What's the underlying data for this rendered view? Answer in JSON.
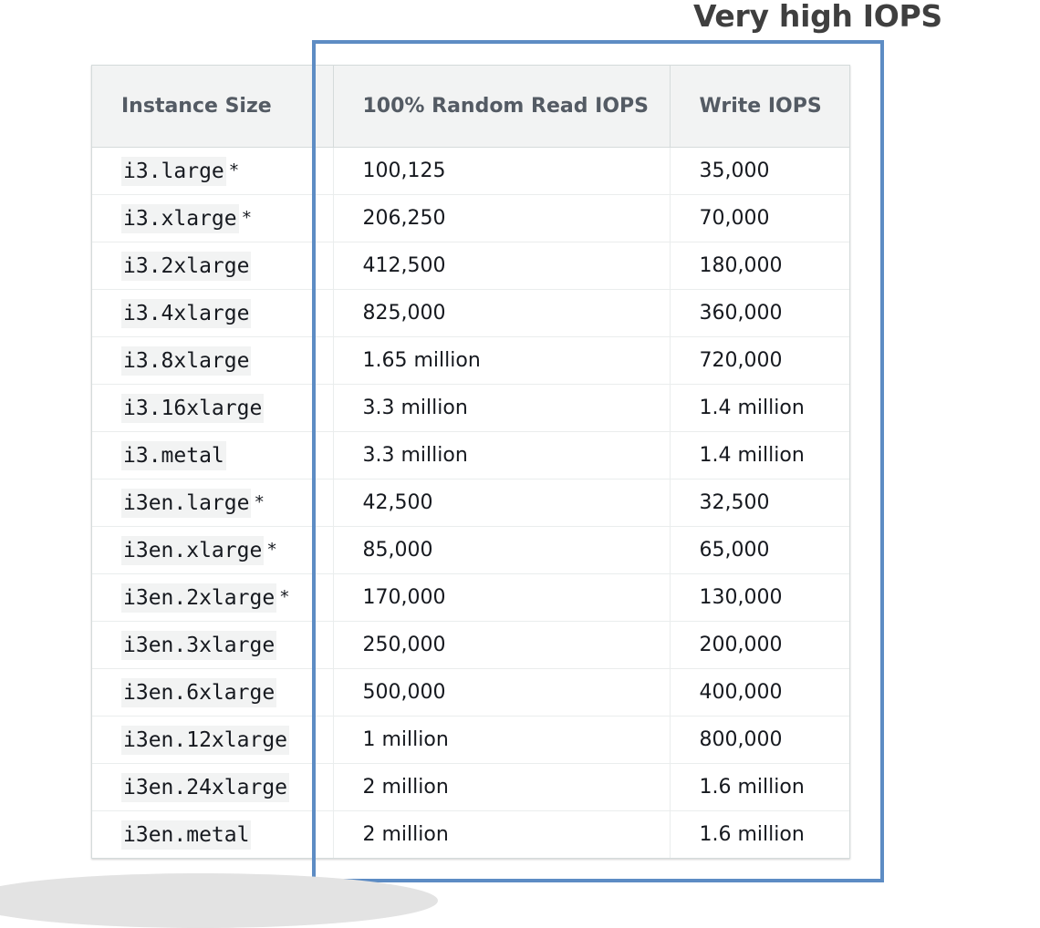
{
  "callout": {
    "text": "Very high IOPS",
    "box_color": "#5d8cc4"
  },
  "table": {
    "headers": [
      "Instance Size",
      "100% Random Read IOPS",
      "Write IOPS"
    ],
    "rows": [
      {
        "instance": "i3.large",
        "footnote": "*",
        "read": "100,125",
        "write": "35,000"
      },
      {
        "instance": "i3.xlarge",
        "footnote": "*",
        "read": "206,250",
        "write": "70,000"
      },
      {
        "instance": "i3.2xlarge",
        "footnote": "",
        "read": "412,500",
        "write": "180,000"
      },
      {
        "instance": "i3.4xlarge",
        "footnote": "",
        "read": "825,000",
        "write": "360,000"
      },
      {
        "instance": "i3.8xlarge",
        "footnote": "",
        "read": "1.65 million",
        "write": "720,000"
      },
      {
        "instance": "i3.16xlarge",
        "footnote": "",
        "read": "3.3 million",
        "write": "1.4 million"
      },
      {
        "instance": "i3.metal",
        "footnote": "",
        "read": "3.3 million",
        "write": "1.4 million"
      },
      {
        "instance": "i3en.large",
        "footnote": "*",
        "read": "42,500",
        "write": "32,500"
      },
      {
        "instance": "i3en.xlarge",
        "footnote": "*",
        "read": "85,000",
        "write": "65,000"
      },
      {
        "instance": "i3en.2xlarge",
        "footnote": "*",
        "read": "170,000",
        "write": "130,000"
      },
      {
        "instance": "i3en.3xlarge",
        "footnote": "",
        "read": "250,000",
        "write": "200,000"
      },
      {
        "instance": "i3en.6xlarge",
        "footnote": "",
        "read": "500,000",
        "write": "400,000"
      },
      {
        "instance": "i3en.12xlarge",
        "footnote": "",
        "read": "1 million",
        "write": "800,000"
      },
      {
        "instance": "i3en.24xlarge",
        "footnote": "",
        "read": "2 million",
        "write": "1.6 million"
      },
      {
        "instance": "i3en.metal",
        "footnote": "",
        "read": "2 million",
        "write": "1.6 million"
      }
    ]
  }
}
